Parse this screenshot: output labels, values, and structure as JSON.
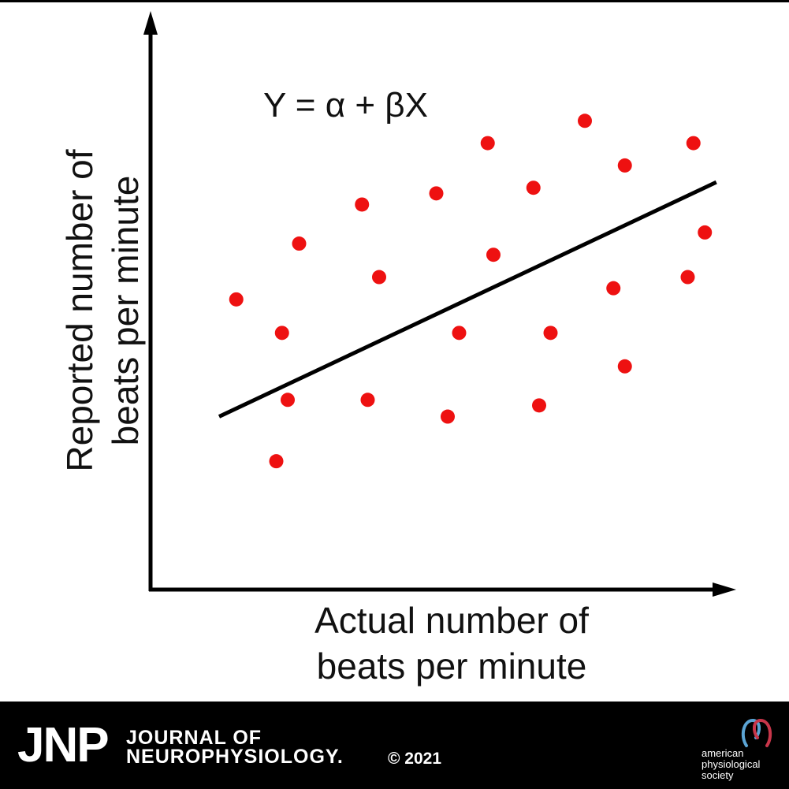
{
  "chart_data": {
    "type": "scatter",
    "title": "",
    "annotation": "Y = α + βX",
    "xlabel": "Actual number of beats per minute",
    "xlabel_lines": [
      "Actual number of",
      "beats per minute"
    ],
    "ylabel": "Reported number of beats per minute",
    "ylabel_lines": [
      "Reported number of",
      "beats per minute"
    ],
    "ticks": "none",
    "grid": false,
    "legend": "none",
    "xlim": [
      0,
      100
    ],
    "ylim": [
      0,
      100
    ],
    "series": [
      {
        "points": [
          {
            "x": 15,
            "y": 52
          },
          {
            "x": 23,
            "y": 46
          },
          {
            "x": 26,
            "y": 62
          },
          {
            "x": 24,
            "y": 34
          },
          {
            "x": 22,
            "y": 23
          },
          {
            "x": 37,
            "y": 69
          },
          {
            "x": 40,
            "y": 56
          },
          {
            "x": 38,
            "y": 34
          },
          {
            "x": 50,
            "y": 71
          },
          {
            "x": 52,
            "y": 31
          },
          {
            "x": 54,
            "y": 46
          },
          {
            "x": 59,
            "y": 80
          },
          {
            "x": 60,
            "y": 60
          },
          {
            "x": 67,
            "y": 72
          },
          {
            "x": 68,
            "y": 33
          },
          {
            "x": 70,
            "y": 46
          },
          {
            "x": 76,
            "y": 84
          },
          {
            "x": 81,
            "y": 54
          },
          {
            "x": 83,
            "y": 76
          },
          {
            "x": 83,
            "y": 40
          },
          {
            "x": 94,
            "y": 56
          },
          {
            "x": 95,
            "y": 80
          },
          {
            "x": 97,
            "y": 64
          }
        ]
      }
    ],
    "fit_line": {
      "x": [
        12,
        99
      ],
      "y": [
        31,
        73
      ]
    }
  },
  "colors": {
    "points": "#ee1111",
    "axes": "#000000",
    "fit_line": "#000000",
    "footer_bg": "#000000",
    "footer_text": "#ffffff",
    "logo_blue": "#5ba4d4",
    "logo_red": "#c8364a"
  },
  "footer": {
    "brand": "JNP",
    "journal_line1": "JOURNAL OF",
    "journal_line2": "NEUROPHYSIOLOGY.",
    "copyright": "© 2021",
    "society_line1": "american",
    "society_line2": "physiological",
    "society_line3": "society",
    "logo_icon": "aps-loop-logo"
  }
}
